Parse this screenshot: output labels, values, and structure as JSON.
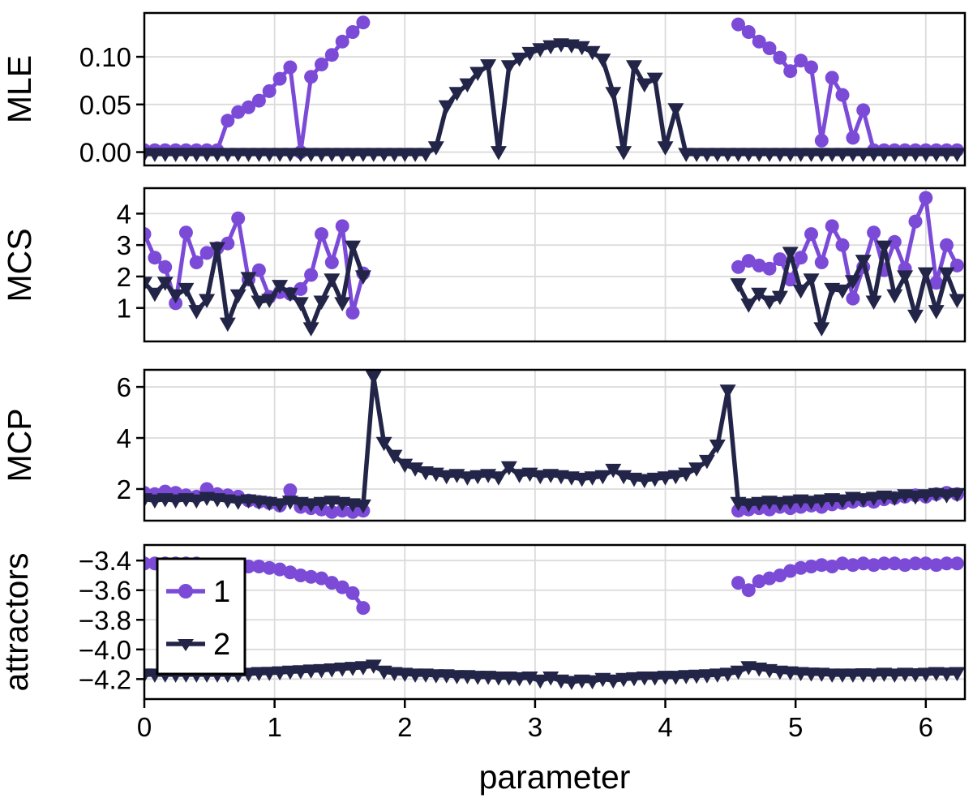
{
  "figure": {
    "xlabel": "parameter",
    "x_ticks": [
      0,
      1,
      2,
      3,
      4,
      5,
      6
    ],
    "x_tick_labels": [
      "0",
      "1",
      "2",
      "3",
      "4",
      "5",
      "6"
    ],
    "colors": {
      "series1": "#7B4BD8",
      "series2": "#232548",
      "grid": "#DBDBDB",
      "axis": "#000000",
      "background": "#FFFFFF"
    },
    "legend": {
      "position": "upper-left of attractors panel",
      "entries": [
        {
          "label": "1",
          "marker": "circle",
          "color": "#7B4BD8"
        },
        {
          "label": "2",
          "marker": "triangle-down",
          "color": "#232548"
        }
      ]
    }
  },
  "chart_data": {
    "type": "line",
    "layout": "4 vertically stacked panels, shared x-axis",
    "xlabel": "parameter",
    "xlim": [
      0,
      6.3
    ],
    "x": [
      0,
      0.08,
      0.16,
      0.24,
      0.32,
      0.4,
      0.48,
      0.56,
      0.64,
      0.72,
      0.8,
      0.88,
      0.96,
      1.04,
      1.12,
      1.2,
      1.28,
      1.36,
      1.44,
      1.52,
      1.6,
      1.68,
      1.76,
      1.84,
      1.92,
      2,
      2.08,
      2.16,
      2.24,
      2.32,
      2.4,
      2.48,
      2.56,
      2.64,
      2.72,
      2.8,
      2.88,
      2.96,
      3.04,
      3.12,
      3.2,
      3.28,
      3.36,
      3.44,
      3.52,
      3.6,
      3.68,
      3.76,
      3.84,
      3.92,
      4,
      4.08,
      4.16,
      4.24,
      4.32,
      4.4,
      4.48,
      4.56,
      4.64,
      4.72,
      4.8,
      4.88,
      4.96,
      5.04,
      5.12,
      5.2,
      5.28,
      5.36,
      5.44,
      5.52,
      5.6,
      5.68,
      5.76,
      5.84,
      5.92,
      6,
      6.08,
      6.16,
      6.24
    ],
    "panels": [
      {
        "ylabel": "MLE",
        "ylim": [
          -0.014,
          0.146
        ],
        "yticks": {
          "values": [
            0,
            0.05,
            0.1
          ],
          "labels": [
            "0.00",
            "0.05",
            "0.10"
          ]
        },
        "series": [
          {
            "name": "1",
            "marker": "circle",
            "color": "#7B4BD8",
            "values": [
              0.002,
              0.002,
              0.002,
              0.002,
              0.002,
              0.002,
              0.002,
              0.002,
              0.033,
              0.042,
              0.047,
              0.054,
              0.064,
              0.077,
              0.089,
              0,
              0.079,
              0.092,
              0.102,
              0.116,
              0.126,
              0.136,
              null,
              null,
              null,
              null,
              null,
              null,
              null,
              null,
              null,
              null,
              null,
              null,
              null,
              null,
              null,
              null,
              null,
              null,
              null,
              null,
              null,
              null,
              null,
              null,
              null,
              null,
              null,
              null,
              null,
              null,
              null,
              null,
              null,
              null,
              null,
              0.134,
              0.126,
              0.116,
              0.109,
              0.099,
              0.085,
              0.096,
              0.089,
              0.012,
              0.078,
              0.06,
              0.015,
              0.044,
              0.002,
              0.002,
              0.002,
              0.002,
              0.002,
              0.002,
              0.002,
              0.002,
              0.002
            ]
          },
          {
            "name": "2",
            "marker": "triangle-down",
            "color": "#232548",
            "values": [
              -0.002,
              -0.002,
              -0.002,
              -0.002,
              -0.002,
              -0.002,
              -0.002,
              -0.002,
              -0.002,
              -0.002,
              -0.002,
              -0.002,
              -0.002,
              -0.002,
              -0.002,
              -0.002,
              -0.002,
              -0.002,
              -0.002,
              -0.002,
              -0.002,
              -0.002,
              -0.002,
              -0.002,
              -0.002,
              -0.002,
              -0.002,
              -0.002,
              0.005,
              0.048,
              0.062,
              0.071,
              0.083,
              0.091,
              0,
              0.09,
              0.098,
              0.104,
              0.108,
              0.111,
              0.113,
              0.112,
              0.11,
              0.105,
              0.097,
              0.062,
              0,
              0.09,
              0.071,
              0.077,
              0.005,
              0.045,
              -0.002,
              -0.002,
              -0.002,
              -0.002,
              -0.002,
              -0.002,
              -0.002,
              -0.002,
              -0.002,
              -0.002,
              -0.002,
              -0.002,
              -0.002,
              -0.002,
              -0.002,
              -0.002,
              -0.002,
              -0.002,
              -0.002,
              -0.002,
              -0.002,
              -0.002,
              -0.002,
              -0.002,
              -0.002,
              -0.002,
              -0.002
            ]
          }
        ]
      },
      {
        "ylabel": "MCS",
        "ylim": [
          -0.065,
          4.81
        ],
        "yticks": {
          "values": [
            1,
            2,
            3,
            4
          ],
          "labels": [
            "1",
            "2",
            "3",
            "4"
          ]
        },
        "series": [
          {
            "name": "1",
            "marker": "circle",
            "color": "#7B4BD8",
            "values": [
              3.35,
              2.6,
              2.3,
              1.15,
              3.4,
              2.45,
              2.75,
              2.9,
              3.05,
              3.85,
              1.9,
              2.2,
              1.35,
              1.5,
              1.45,
              1.6,
              2.05,
              3.35,
              2.45,
              3.6,
              0.85,
              2.1,
              null,
              null,
              null,
              null,
              null,
              null,
              null,
              null,
              null,
              null,
              null,
              null,
              null,
              null,
              null,
              null,
              null,
              null,
              null,
              null,
              null,
              null,
              null,
              null,
              null,
              null,
              null,
              null,
              null,
              null,
              null,
              null,
              null,
              null,
              null,
              2.3,
              2.5,
              2.35,
              2.25,
              2.55,
              1.9,
              2.6,
              3.35,
              2.45,
              3.6,
              3,
              1.3,
              2.3,
              3.4,
              2.2,
              3.1,
              2.25,
              3.75,
              4.5,
              1.8,
              3,
              2.35
            ]
          },
          {
            "name": "2",
            "marker": "triangle-down",
            "color": "#232548",
            "values": [
              1.8,
              1.45,
              1.8,
              1.4,
              1.6,
              0.9,
              1.25,
              2.9,
              0.5,
              1.4,
              1.95,
              1.2,
              1.25,
              1.7,
              1.45,
              1.15,
              0.35,
              1.2,
              1.9,
              1.15,
              2.95,
              2,
              null,
              null,
              null,
              null,
              null,
              null,
              null,
              null,
              null,
              null,
              null,
              null,
              null,
              null,
              null,
              null,
              null,
              null,
              null,
              null,
              null,
              null,
              null,
              null,
              null,
              null,
              null,
              null,
              null,
              null,
              null,
              null,
              null,
              null,
              null,
              1.75,
              1.1,
              1.45,
              1.2,
              1.35,
              2.75,
              1.55,
              1.9,
              0.35,
              1.6,
              1.55,
              1.85,
              2.5,
              1.2,
              2.95,
              1.4,
              2,
              0.75,
              2.1,
              0.9,
              2.1,
              1.25
            ]
          }
        ]
      },
      {
        "ylabel": "MCP",
        "ylim": [
          0.76,
          6.67
        ],
        "yticks": {
          "values": [
            2,
            4,
            6
          ],
          "labels": [
            "2",
            "4",
            "6"
          ]
        },
        "series": [
          {
            "name": "1",
            "marker": "circle",
            "color": "#7B4BD8",
            "values": [
              1.85,
              1.8,
              1.9,
              1.85,
              1.75,
              1.7,
              2,
              1.8,
              1.75,
              1.7,
              1.55,
              1.5,
              1.45,
              1.35,
              1.95,
              1.3,
              1.25,
              1.2,
              1.1,
              1.15,
              1.1,
              1.15,
              null,
              null,
              null,
              null,
              null,
              null,
              null,
              null,
              null,
              null,
              null,
              null,
              null,
              null,
              null,
              null,
              null,
              null,
              null,
              null,
              null,
              null,
              null,
              null,
              null,
              null,
              null,
              null,
              null,
              null,
              null,
              null,
              null,
              null,
              null,
              1.15,
              1.2,
              1.25,
              1.2,
              1.3,
              1.25,
              1.3,
              1.35,
              1.3,
              1.4,
              1.45,
              1.5,
              1.55,
              1.5,
              1.6,
              1.65,
              1.7,
              1.75,
              1.7,
              1.8,
              1.85,
              1.8
            ]
          },
          {
            "name": "2",
            "marker": "triangle-down",
            "color": "#232548",
            "values": [
              1.6,
              1.55,
              1.6,
              1.55,
              1.6,
              1.55,
              1.65,
              1.6,
              1.55,
              1.5,
              1.55,
              1.5,
              1.45,
              1.4,
              1.5,
              1.45,
              1.4,
              1.45,
              1.5,
              1.45,
              1.4,
              1.35,
              6.4,
              3.8,
              3.3,
              2.95,
              2.8,
              2.65,
              2.6,
              2.5,
              2.55,
              2.45,
              2.5,
              2.55,
              2.45,
              2.85,
              2.55,
              2.6,
              2.5,
              2.55,
              2.5,
              2.45,
              2.4,
              2.45,
              2.5,
              2.75,
              2.5,
              2.4,
              2.35,
              2.4,
              2.45,
              2.5,
              2.6,
              2.8,
              3.1,
              3.7,
              5.85,
              1.45,
              1.4,
              1.45,
              1.5,
              1.45,
              1.5,
              1.55,
              1.5,
              1.55,
              1.6,
              1.55,
              1.65,
              1.6,
              1.65,
              1.7,
              1.65,
              1.75,
              1.7,
              1.75,
              1.8,
              1.75,
              1.8
            ]
          }
        ]
      },
      {
        "ylabel": "attractors",
        "ylim": [
          -4.335,
          -3.295
        ],
        "yticks": {
          "values": [
            -3.4,
            -3.6,
            -3.8,
            -4.0,
            -4.2
          ],
          "labels": [
            "−3.4",
            "−3.6",
            "−3.8",
            "−4.0",
            "−4.2"
          ]
        },
        "series": [
          {
            "name": "1",
            "marker": "circle",
            "color": "#7B4BD8",
            "values": [
              -3.42,
              -3.42,
              -3.42,
              -3.42,
              -3.42,
              -3.42,
              -3.43,
              -3.43,
              -3.43,
              -3.44,
              -3.44,
              -3.44,
              -3.45,
              -3.46,
              -3.48,
              -3.5,
              -3.51,
              -3.52,
              -3.55,
              -3.58,
              -3.62,
              -3.72,
              null,
              null,
              null,
              null,
              null,
              null,
              null,
              null,
              null,
              null,
              null,
              null,
              null,
              null,
              null,
              null,
              null,
              null,
              null,
              null,
              null,
              null,
              null,
              null,
              null,
              null,
              null,
              null,
              null,
              null,
              null,
              null,
              null,
              null,
              null,
              -3.55,
              -3.6,
              -3.54,
              -3.52,
              -3.5,
              -3.47,
              -3.45,
              -3.44,
              -3.43,
              -3.44,
              -3.42,
              -3.43,
              -3.42,
              -3.43,
              -3.42,
              -3.42,
              -3.43,
              -3.42,
              -3.42,
              -3.43,
              -3.42,
              -3.42
            ]
          },
          {
            "name": "2",
            "marker": "triangle-down",
            "color": "#232548",
            "values": [
              -4.17,
              -4.17,
              -4.17,
              -4.17,
              -4.17,
              -4.17,
              -4.17,
              -4.17,
              -4.17,
              -4.17,
              -4.165,
              -4.16,
              -4.158,
              -4.155,
              -4.15,
              -4.147,
              -4.143,
              -4.14,
              -4.135,
              -4.13,
              -4.125,
              -4.12,
              -4.11,
              -4.15,
              -4.16,
              -4.165,
              -4.17,
              -4.17,
              -4.175,
              -4.175,
              -4.18,
              -4.18,
              -4.185,
              -4.185,
              -4.19,
              -4.19,
              -4.195,
              -4.19,
              -4.21,
              -4.19,
              -4.21,
              -4.22,
              -4.21,
              -4.215,
              -4.2,
              -4.21,
              -4.2,
              -4.195,
              -4.19,
              -4.19,
              -4.185,
              -4.185,
              -4.18,
              -4.178,
              -4.175,
              -4.17,
              -4.165,
              -4.15,
              -4.12,
              -4.13,
              -4.14,
              -4.15,
              -4.155,
              -4.16,
              -4.163,
              -4.165,
              -4.17,
              -4.17,
              -4.17,
              -4.168,
              -4.17,
              -4.165,
              -4.17,
              -4.165,
              -4.168,
              -4.165,
              -4.16,
              -4.163,
              -4.16
            ]
          }
        ]
      }
    ]
  }
}
